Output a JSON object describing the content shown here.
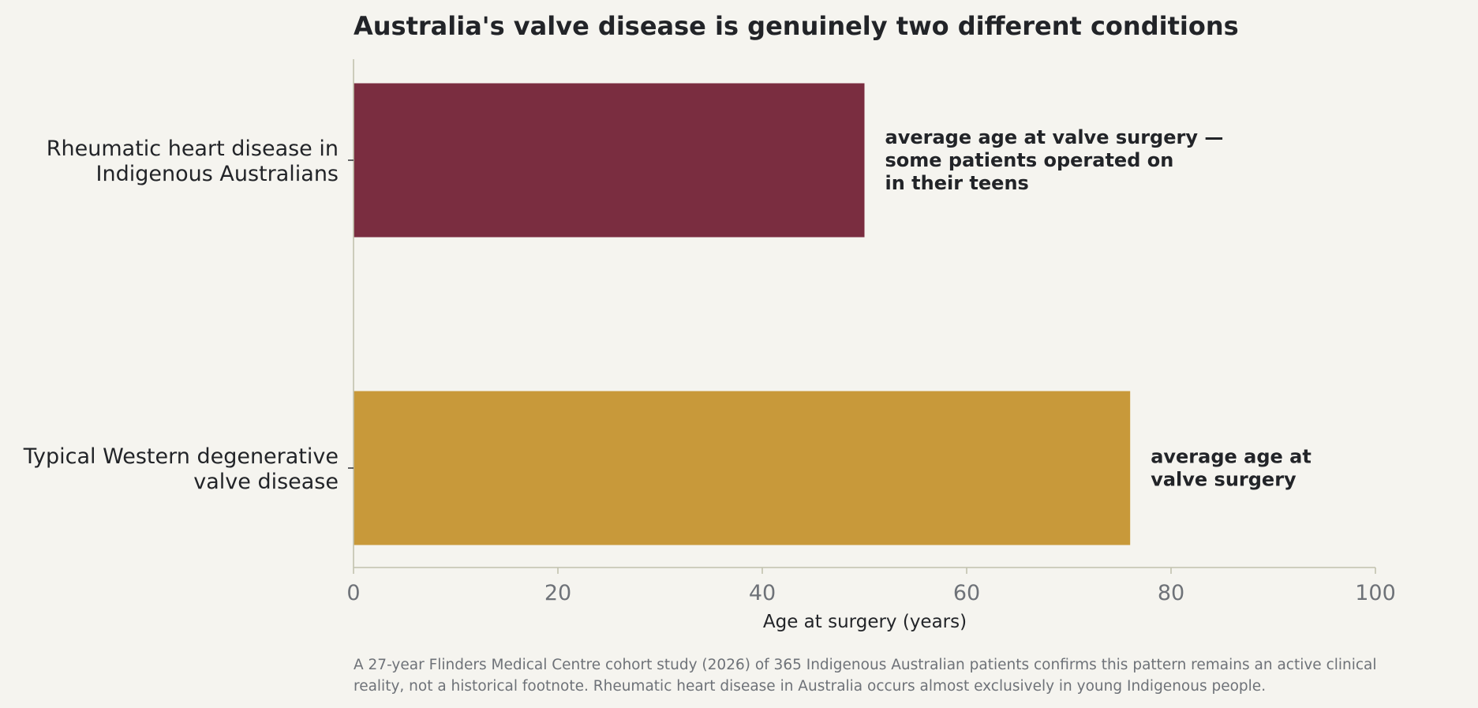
{
  "chart_data": {
    "type": "bar",
    "orientation": "horizontal",
    "title": "Australia's valve disease is genuinely two different conditions",
    "xlabel": "Age at surgery (years)",
    "ylabel": "",
    "xlim": [
      0,
      100
    ],
    "xticks": [
      0,
      20,
      40,
      60,
      80,
      100
    ],
    "grid": false,
    "categories": [
      [
        "Rheumatic heart disease in",
        "Indigenous Australians"
      ],
      [
        "Typical Western degenerative",
        "valve disease"
      ]
    ],
    "values": [
      50,
      76
    ],
    "colors": [
      "#7a2d40",
      "#c8993a"
    ],
    "annotations": [
      [
        "average age at valve surgery —",
        "some patients operated on",
        "in their teens"
      ],
      [
        "average age at",
        "valve surgery"
      ]
    ],
    "footnote": [
      "A 27-year Flinders Medical Centre cohort study (2026) of 365 Indigenous Australian patients confirms this pattern remains an active clinical",
      "reality, not a historical footnote. Rheumatic heart disease in Australia occurs almost exclusively in young Indigenous people."
    ]
  },
  "theme": {
    "background": "#f5f4ef",
    "axis_color": "#c2c1ae",
    "text_color": "#222428",
    "muted_text": "#6e7278"
  }
}
